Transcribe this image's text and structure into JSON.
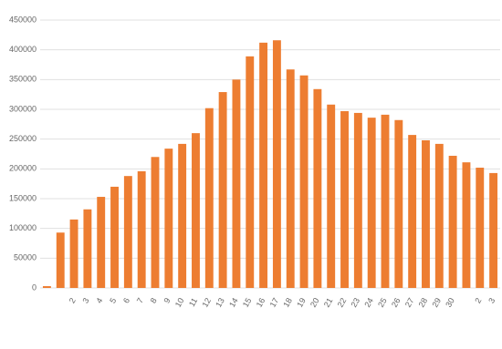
{
  "chart_data": {
    "type": "bar",
    "categories": [
      null,
      null,
      "2",
      "3",
      "4",
      "5",
      "6",
      "7",
      "8",
      "9",
      "10",
      "11",
      "12",
      "13",
      "14",
      "15",
      "16",
      "17",
      "18",
      "19",
      "20",
      "21",
      "22",
      "23",
      "24",
      "25",
      "26",
      "27",
      "28",
      "29",
      "30",
      null,
      "2",
      "3"
    ],
    "values": [
      3000,
      93000,
      115000,
      132000,
      153000,
      170000,
      188000,
      196000,
      220000,
      234000,
      242000,
      260000,
      302000,
      329000,
      350000,
      389000,
      412000,
      416000,
      367000,
      357000,
      334000,
      308000,
      297000,
      294000,
      286000,
      291000,
      282000,
      257000,
      248000,
      242000,
      222000,
      211000,
      202000,
      193000
    ],
    "color": "#ed7d31",
    "ylim": [
      0,
      450000
    ],
    "yticks": [
      0,
      50000,
      100000,
      150000,
      200000,
      250000,
      300000,
      350000,
      400000,
      450000
    ],
    "grid": true
  }
}
